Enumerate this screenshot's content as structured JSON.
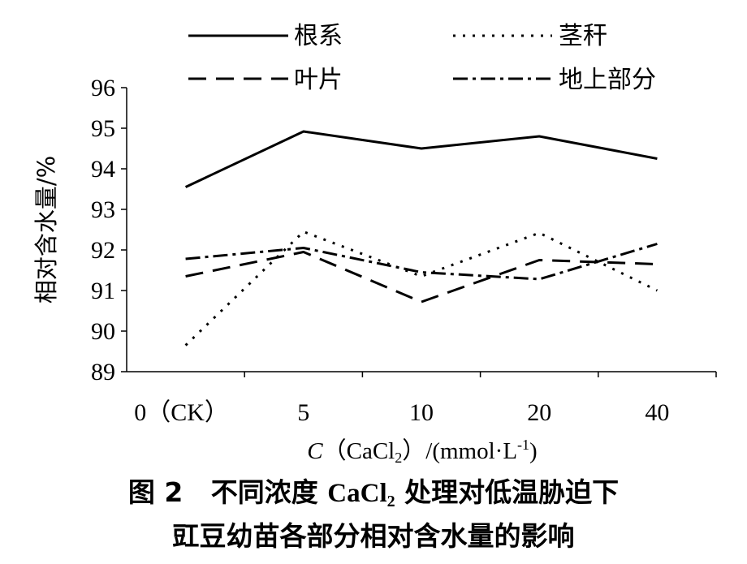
{
  "chart_data": {
    "type": "line",
    "categories": [
      "0（CK）",
      "5",
      "10",
      "20",
      "40"
    ],
    "series": [
      {
        "name": "根系",
        "dash": "solid",
        "values": [
          93.55,
          94.92,
          94.5,
          94.8,
          94.25
        ]
      },
      {
        "name": "茎秆",
        "dash": "dotted",
        "values": [
          89.65,
          92.45,
          91.35,
          92.42,
          91.0
        ]
      },
      {
        "name": "叶片",
        "dash": "dashed",
        "values": [
          91.35,
          91.95,
          90.72,
          91.75,
          91.65
        ]
      },
      {
        "name": "地上部分",
        "dash": "dashdot",
        "values": [
          91.78,
          92.05,
          91.45,
          91.28,
          92.15
        ]
      }
    ],
    "y_ticks": [
      "96",
      "95",
      "94",
      "93",
      "92",
      "91",
      "90",
      "89"
    ],
    "ylim": [
      89,
      96
    ],
    "ylabel": "相对含水量/%",
    "xlabel": {
      "var": "C",
      "open_paren": "（",
      "compound": "CaCl",
      "subscript": "2",
      "close_paren": "）",
      "unit_prefix": "/(mmol",
      "dot": "·",
      "unit_base": "L",
      "superscript": "-1",
      "unit_suffix": ")"
    },
    "grid": false,
    "legend_position": "top",
    "color": "#000000"
  },
  "caption": {
    "figure_no": "图 2",
    "line1_a": "不同浓度 ",
    "line1_chem": "CaCl",
    "line1_sub": "2",
    "line1_b": " 处理对低温胁迫下",
    "line2": "豇豆幼苗各部分相对含水量的影响"
  }
}
